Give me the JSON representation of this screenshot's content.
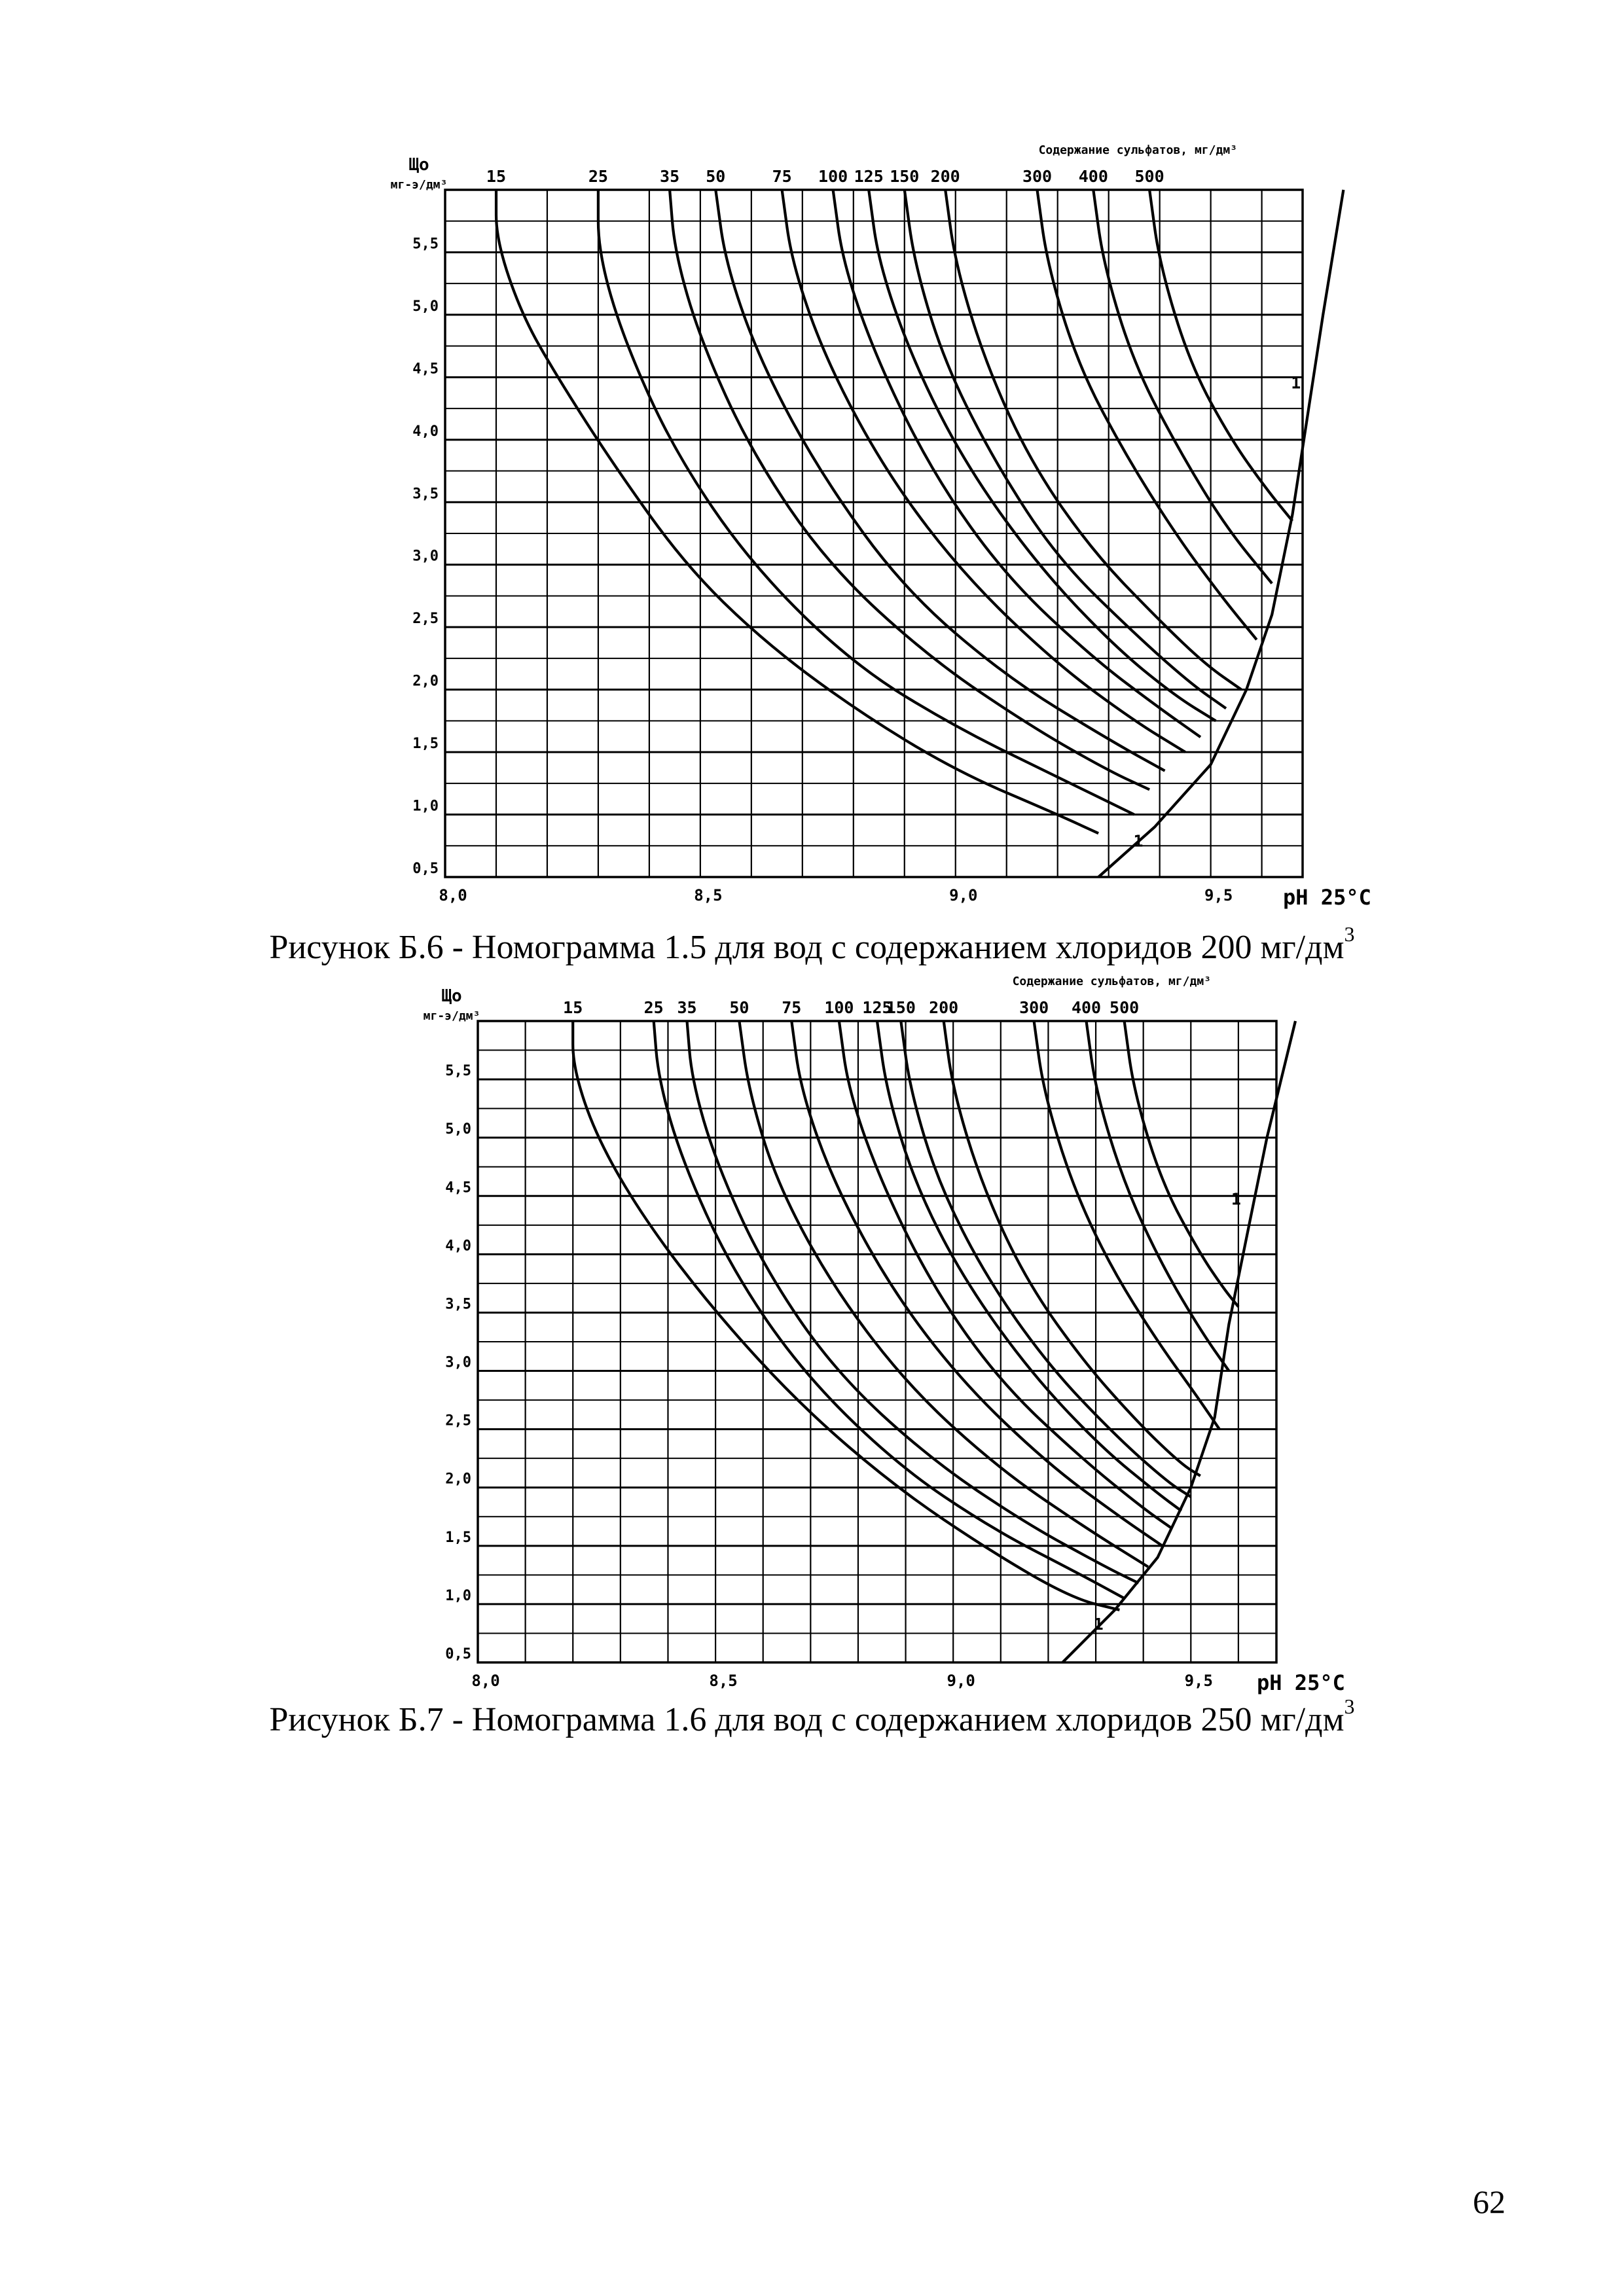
{
  "page_number": "62",
  "chart_data": [
    {
      "id": "b6",
      "type": "line",
      "caption_main": "Рисунок Б.6 - Номограмма 1.5 для вод с содержанием хлоридов 200 мг/дм",
      "caption_sup": "3",
      "top_axis_title": "Содержание сульфатов, мг/дм³",
      "top_labels": [
        "15",
        "25",
        "35",
        "50",
        "75",
        "100",
        "125",
        "150",
        "200",
        "300",
        "400",
        "500"
      ],
      "ylabel_line1": "Що",
      "ylabel_line2": "мг-э/дм³",
      "xlabel": "pH 25°C",
      "x_tick_labels": [
        "8,0",
        "8,5",
        "9,0",
        "9,5"
      ],
      "x_tick_values": [
        8.0,
        8.5,
        9.0,
        9.5
      ],
      "y_tick_labels": [
        "0,5",
        "1,0",
        "1,5",
        "2,0",
        "2,5",
        "3,0",
        "3,5",
        "4,0",
        "4,5",
        "5,0",
        "5,5"
      ],
      "y_tick_values": [
        0.5,
        1.0,
        1.5,
        2.0,
        2.5,
        3.0,
        3.5,
        4.0,
        4.5,
        5.0,
        5.5
      ],
      "xlim": [
        8.0,
        9.68
      ],
      "ylim": [
        0.5,
        6.0
      ],
      "boundary_label": "1",
      "boundary_curve": [
        [
          9.28,
          0.5
        ],
        [
          9.39,
          0.9
        ],
        [
          9.5,
          1.4
        ],
        [
          9.57,
          2.0
        ],
        [
          9.62,
          2.6
        ],
        [
          9.66,
          3.4
        ],
        [
          9.69,
          4.2
        ],
        [
          9.72,
          5.0
        ],
        [
          9.76,
          6.0
        ]
      ],
      "series": [
        {
          "name": "15",
          "points": [
            [
              8.1,
              6.0
            ],
            [
              8.1,
              5.6
            ],
            [
              8.15,
              5.0
            ],
            [
              8.22,
              4.5
            ],
            [
              8.33,
              3.8
            ],
            [
              8.47,
              3.0
            ],
            [
              8.62,
              2.4
            ],
            [
              8.8,
              1.85
            ],
            [
              9.0,
              1.35
            ],
            [
              9.2,
              1.0
            ],
            [
              9.28,
              0.85
            ]
          ]
        },
        {
          "name": "25",
          "points": [
            [
              8.3,
              6.0
            ],
            [
              8.3,
              5.5
            ],
            [
              8.35,
              4.8
            ],
            [
              8.45,
              3.9
            ],
            [
              8.6,
              3.0
            ],
            [
              8.8,
              2.2
            ],
            [
              9.0,
              1.7
            ],
            [
              9.2,
              1.3
            ],
            [
              9.35,
              1.0
            ]
          ]
        },
        {
          "name": "35",
          "points": [
            [
              8.44,
              6.0
            ],
            [
              8.45,
              5.5
            ],
            [
              8.5,
              4.8
            ],
            [
              8.6,
              3.9
            ],
            [
              8.75,
              3.0
            ],
            [
              8.95,
              2.25
            ],
            [
              9.15,
              1.7
            ],
            [
              9.3,
              1.35
            ],
            [
              9.38,
              1.2
            ]
          ]
        },
        {
          "name": "50",
          "points": [
            [
              8.53,
              6.0
            ],
            [
              8.55,
              5.4
            ],
            [
              8.62,
              4.6
            ],
            [
              8.74,
              3.7
            ],
            [
              8.9,
              2.8
            ],
            [
              9.1,
              2.1
            ],
            [
              9.3,
              1.6
            ],
            [
              9.41,
              1.35
            ]
          ]
        },
        {
          "name": "75",
          "points": [
            [
              8.66,
              6.0
            ],
            [
              8.68,
              5.4
            ],
            [
              8.75,
              4.6
            ],
            [
              8.87,
              3.7
            ],
            [
              9.02,
              2.9
            ],
            [
              9.2,
              2.2
            ],
            [
              9.35,
              1.75
            ],
            [
              9.45,
              1.5
            ]
          ]
        },
        {
          "name": "100",
          "points": [
            [
              8.76,
              6.0
            ],
            [
              8.78,
              5.4
            ],
            [
              8.85,
              4.6
            ],
            [
              8.96,
              3.7
            ],
            [
              9.1,
              2.9
            ],
            [
              9.27,
              2.25
            ],
            [
              9.4,
              1.85
            ],
            [
              9.48,
              1.62
            ]
          ]
        },
        {
          "name": "125",
          "points": [
            [
              8.83,
              6.0
            ],
            [
              8.85,
              5.4
            ],
            [
              8.92,
              4.6
            ],
            [
              9.02,
              3.8
            ],
            [
              9.16,
              3.0
            ],
            [
              9.31,
              2.35
            ],
            [
              9.43,
              1.95
            ],
            [
              9.51,
              1.75
            ]
          ]
        },
        {
          "name": "150",
          "points": [
            [
              8.9,
              6.0
            ],
            [
              8.92,
              5.4
            ],
            [
              8.98,
              4.6
            ],
            [
              9.08,
              3.8
            ],
            [
              9.2,
              3.05
            ],
            [
              9.35,
              2.45
            ],
            [
              9.46,
              2.05
            ],
            [
              9.53,
              1.85
            ]
          ]
        },
        {
          "name": "200",
          "points": [
            [
              8.98,
              6.0
            ],
            [
              9.0,
              5.4
            ],
            [
              9.06,
              4.6
            ],
            [
              9.15,
              3.8
            ],
            [
              9.27,
              3.1
            ],
            [
              9.4,
              2.55
            ],
            [
              9.49,
              2.2
            ],
            [
              9.56,
              2.0
            ]
          ]
        },
        {
          "name": "300",
          "points": [
            [
              9.16,
              6.0
            ],
            [
              9.18,
              5.4
            ],
            [
              9.24,
              4.6
            ],
            [
              9.33,
              3.9
            ],
            [
              9.43,
              3.25
            ],
            [
              9.52,
              2.75
            ],
            [
              9.59,
              2.4
            ]
          ]
        },
        {
          "name": "400",
          "points": [
            [
              9.27,
              6.0
            ],
            [
              9.29,
              5.4
            ],
            [
              9.35,
              4.6
            ],
            [
              9.44,
              3.9
            ],
            [
              9.53,
              3.3
            ],
            [
              9.62,
              2.85
            ]
          ]
        },
        {
          "name": "500",
          "points": [
            [
              9.38,
              6.0
            ],
            [
              9.4,
              5.4
            ],
            [
              9.46,
              4.6
            ],
            [
              9.54,
              4.0
            ],
            [
              9.61,
              3.6
            ],
            [
              9.66,
              3.35
            ]
          ]
        }
      ]
    },
    {
      "id": "b7",
      "type": "line",
      "caption_main": "Рисунок Б.7 - Номограмма 1.6 для вод с содержанием хлоридов 250 мг/дм",
      "caption_sup": "3",
      "top_axis_title": "Содержание сульфатов, мг/дм³",
      "top_labels": [
        "15",
        "25",
        "35",
        "50",
        "75",
        "100",
        "125",
        "150",
        "200",
        "300",
        "400",
        "500"
      ],
      "ylabel_line1": "Що",
      "ylabel_line2": "мг-э/дм³",
      "xlabel": "pH 25°C",
      "x_tick_labels": [
        "8,0",
        "8,5",
        "9,0",
        "9,5"
      ],
      "x_tick_values": [
        8.0,
        8.5,
        9.0,
        9.5
      ],
      "y_tick_labels": [
        "0,5",
        "1,0",
        "1,5",
        "2,0",
        "2,5",
        "3,0",
        "3,5",
        "4,0",
        "4,5",
        "5,0",
        "5,5"
      ],
      "y_tick_values": [
        0.5,
        1.0,
        1.5,
        2.0,
        2.5,
        3.0,
        3.5,
        4.0,
        4.5,
        5.0,
        5.5
      ],
      "xlim": [
        8.0,
        9.68
      ],
      "ylim": [
        0.5,
        6.0
      ],
      "boundary_label": "1",
      "boundary_curve": [
        [
          9.23,
          0.5
        ],
        [
          9.34,
          0.95
        ],
        [
          9.43,
          1.4
        ],
        [
          9.5,
          2.0
        ],
        [
          9.55,
          2.6
        ],
        [
          9.58,
          3.4
        ],
        [
          9.62,
          4.2
        ],
        [
          9.66,
          5.0
        ],
        [
          9.72,
          6.0
        ]
      ],
      "series": [
        {
          "name": "15",
          "points": [
            [
              8.2,
              6.0
            ],
            [
              8.2,
              5.6
            ],
            [
              8.25,
              5.0
            ],
            [
              8.35,
              4.3
            ],
            [
              8.5,
              3.5
            ],
            [
              8.68,
              2.7
            ],
            [
              8.88,
              2.0
            ],
            [
              9.08,
              1.45
            ],
            [
              9.25,
              1.05
            ],
            [
              9.35,
              0.95
            ]
          ]
        },
        {
          "name": "25",
          "points": [
            [
              8.37,
              6.0
            ],
            [
              8.38,
              5.5
            ],
            [
              8.43,
              4.8
            ],
            [
              8.53,
              3.9
            ],
            [
              8.68,
              3.0
            ],
            [
              8.88,
              2.2
            ],
            [
              9.08,
              1.65
            ],
            [
              9.27,
              1.25
            ],
            [
              9.36,
              1.05
            ]
          ]
        },
        {
          "name": "35",
          "points": [
            [
              8.44,
              6.0
            ],
            [
              8.45,
              5.5
            ],
            [
              8.5,
              4.8
            ],
            [
              8.6,
              3.9
            ],
            [
              8.75,
              3.0
            ],
            [
              8.95,
              2.25
            ],
            [
              9.15,
              1.7
            ],
            [
              9.32,
              1.32
            ],
            [
              9.39,
              1.18
            ]
          ]
        },
        {
          "name": "50",
          "points": [
            [
              8.55,
              6.0
            ],
            [
              8.57,
              5.4
            ],
            [
              8.63,
              4.6
            ],
            [
              8.75,
              3.7
            ],
            [
              8.91,
              2.85
            ],
            [
              9.1,
              2.15
            ],
            [
              9.28,
              1.65
            ],
            [
              9.41,
              1.32
            ]
          ]
        },
        {
          "name": "75",
          "points": [
            [
              8.66,
              6.0
            ],
            [
              8.68,
              5.4
            ],
            [
              8.75,
              4.6
            ],
            [
              8.87,
              3.7
            ],
            [
              9.02,
              2.9
            ],
            [
              9.2,
              2.2
            ],
            [
              9.35,
              1.75
            ],
            [
              9.44,
              1.5
            ]
          ]
        },
        {
          "name": "100",
          "points": [
            [
              8.76,
              6.0
            ],
            [
              8.78,
              5.4
            ],
            [
              8.85,
              4.6
            ],
            [
              8.96,
              3.7
            ],
            [
              9.1,
              2.9
            ],
            [
              9.27,
              2.25
            ],
            [
              9.4,
              1.82
            ],
            [
              9.46,
              1.65
            ]
          ]
        },
        {
          "name": "125",
          "points": [
            [
              8.84,
              6.0
            ],
            [
              8.86,
              5.4
            ],
            [
              8.92,
              4.6
            ],
            [
              9.02,
              3.8
            ],
            [
              9.16,
              3.0
            ],
            [
              9.31,
              2.35
            ],
            [
              9.43,
              1.95
            ],
            [
              9.48,
              1.8
            ]
          ]
        },
        {
          "name": "150",
          "points": [
            [
              8.89,
              6.0
            ],
            [
              8.91,
              5.4
            ],
            [
              8.97,
              4.6
            ],
            [
              9.07,
              3.8
            ],
            [
              9.2,
              3.05
            ],
            [
              9.34,
              2.45
            ],
            [
              9.45,
              2.05
            ],
            [
              9.5,
              1.92
            ]
          ]
        },
        {
          "name": "200",
          "points": [
            [
              8.98,
              6.0
            ],
            [
              9.0,
              5.4
            ],
            [
              9.06,
              4.6
            ],
            [
              9.15,
              3.8
            ],
            [
              9.27,
              3.1
            ],
            [
              9.39,
              2.55
            ],
            [
              9.48,
              2.2
            ],
            [
              9.52,
              2.1
            ]
          ]
        },
        {
          "name": "300",
          "points": [
            [
              9.17,
              6.0
            ],
            [
              9.19,
              5.4
            ],
            [
              9.25,
              4.6
            ],
            [
              9.33,
              3.9
            ],
            [
              9.43,
              3.25
            ],
            [
              9.51,
              2.8
            ],
            [
              9.56,
              2.5
            ]
          ]
        },
        {
          "name": "400",
          "points": [
            [
              9.28,
              6.0
            ],
            [
              9.3,
              5.4
            ],
            [
              9.36,
              4.6
            ],
            [
              9.44,
              3.9
            ],
            [
              9.52,
              3.35
            ],
            [
              9.58,
              3.0
            ]
          ]
        },
        {
          "name": "500",
          "points": [
            [
              9.36,
              6.0
            ],
            [
              9.38,
              5.4
            ],
            [
              9.44,
              4.6
            ],
            [
              9.52,
              4.0
            ],
            [
              9.57,
              3.7
            ],
            [
              9.6,
              3.55
            ]
          ]
        }
      ]
    }
  ]
}
